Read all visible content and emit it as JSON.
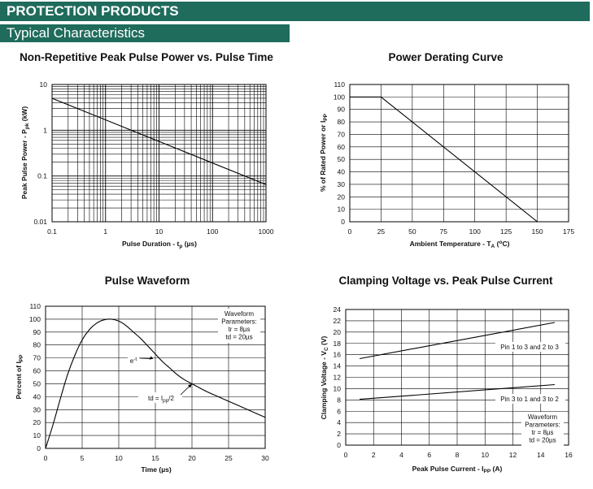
{
  "header": {
    "title": "PROTECTION PRODUCTS",
    "subtitle": "Typical Characteristics"
  },
  "chart_data": [
    {
      "id": "power-vs-time",
      "type": "line",
      "title": "Non-Repetitive Peak Pulse Power vs. Pulse Time",
      "xlabel": "Pulse Duration - tp (µs)",
      "ylabel": "Peak Pulse Power - Ppk (kW)",
      "xscale": "log",
      "yscale": "log",
      "xlim": [
        0.1,
        1000
      ],
      "ylim": [
        0.01,
        10
      ],
      "xticks": [
        "0.1",
        "1",
        "10",
        "100",
        "1000"
      ],
      "yticks": [
        "0.01",
        "0.1",
        "1",
        "10"
      ],
      "grid": true,
      "series": [
        {
          "x": [
            0.1,
            1000
          ],
          "y": [
            5.0,
            0.065
          ]
        }
      ]
    },
    {
      "id": "derating",
      "type": "line",
      "title": "Power Derating Curve",
      "xlabel": "Ambient Temperature - TA (°C)",
      "ylabel": "% of Rated Power or Ipp",
      "xlim": [
        0,
        175
      ],
      "ylim": [
        0,
        110
      ],
      "xticks": [
        "0",
        "25",
        "50",
        "75",
        "100",
        "125",
        "150",
        "175"
      ],
      "yticks": [
        "0",
        "10",
        "20",
        "30",
        "40",
        "50",
        "60",
        "70",
        "80",
        "90",
        "100",
        "110"
      ],
      "grid": true,
      "series": [
        {
          "x": [
            0,
            25,
            150
          ],
          "y": [
            100,
            100,
            0
          ]
        }
      ]
    },
    {
      "id": "pulse-waveform",
      "type": "line",
      "title": "Pulse Waveform",
      "xlabel": "Time (µs)",
      "ylabel": "Percent of Ipp",
      "xlim": [
        0,
        30
      ],
      "ylim": [
        0,
        110
      ],
      "xticks": [
        "0",
        "5",
        "10",
        "15",
        "20",
        "25",
        "30"
      ],
      "yticks": [
        "0",
        "10",
        "20",
        "30",
        "40",
        "50",
        "60",
        "70",
        "80",
        "90",
        "100",
        "110"
      ],
      "grid": true,
      "params_title": "Waveform Parameters:",
      "params": [
        "tr = 8µs",
        "td = 20µs"
      ],
      "annotations": [
        {
          "text": "e",
          "sup": "-t",
          "x": 14.5,
          "y": 70
        },
        {
          "text": "td = Ipp/2",
          "x": 20,
          "y": 50
        }
      ],
      "series": [
        {
          "x": [
            0,
            1,
            2,
            3,
            4,
            5,
            6,
            7,
            8,
            9,
            10,
            11,
            12,
            13,
            14,
            15,
            16,
            17,
            18,
            19,
            20,
            22,
            24,
            26,
            28,
            30
          ],
          "y": [
            0,
            18,
            38,
            57,
            72,
            84,
            92,
            97,
            99.5,
            100,
            98.5,
            95,
            90,
            85,
            79,
            73,
            67,
            62,
            57,
            53,
            50,
            44,
            39,
            34,
            29,
            24
          ]
        }
      ]
    },
    {
      "id": "clamping",
      "type": "line",
      "title": "Clamping Voltage vs. Peak Pulse Current",
      "xlabel": "Peak Pulse Current - Ipp (A)",
      "ylabel": "Clamping Voltage - VC (V)",
      "xlim": [
        0,
        16
      ],
      "ylim": [
        0,
        24
      ],
      "xticks": [
        "0",
        "2",
        "4",
        "6",
        "8",
        "10",
        "12",
        "14",
        "16"
      ],
      "yticks": [
        "0",
        "2",
        "4",
        "6",
        "8",
        "10",
        "12",
        "14",
        "16",
        "18",
        "20",
        "22",
        "24"
      ],
      "grid": true,
      "params_title": "Waveform Parameters:",
      "params": [
        "tr = 8µs",
        "td = 20µs"
      ],
      "series": [
        {
          "name": "Pin 1 to 3 and 2 to 3",
          "x": [
            1,
            15
          ],
          "y": [
            15.3,
            21.7
          ]
        },
        {
          "name": "Pin 3 to 1 and 3 to 2",
          "x": [
            1,
            15
          ],
          "y": [
            8.1,
            10.7
          ]
        }
      ]
    }
  ]
}
